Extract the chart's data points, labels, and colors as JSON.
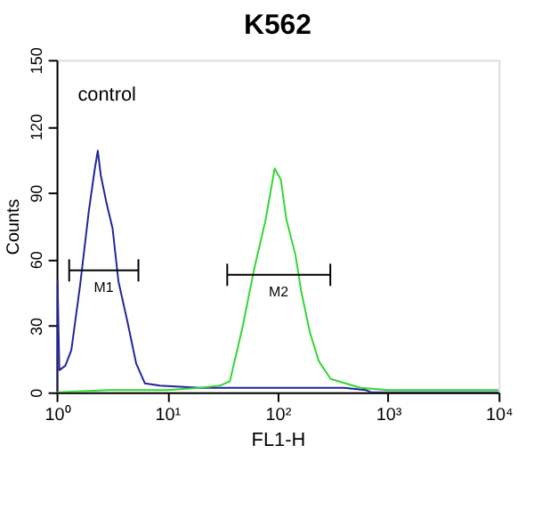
{
  "chart_data": {
    "type": "line",
    "title": "K562",
    "xlabel": "FL1-H",
    "ylabel": "Counts",
    "log": "x",
    "xlim": [
      1,
      10000
    ],
    "xticks": [
      {
        "value": 1,
        "label": "10⁰"
      },
      {
        "value": 10,
        "label": "10¹"
      },
      {
        "value": 100,
        "label": "10²"
      },
      {
        "value": 1000,
        "label": "10³"
      },
      {
        "value": 10000,
        "label": "10⁴"
      }
    ],
    "ylim": [
      0,
      150
    ],
    "yticks": [
      0,
      30,
      60,
      90,
      120,
      150
    ],
    "annotations": [
      "control",
      {
        "text": "M1",
        "x": 2.67,
        "y": 55
      },
      {
        "text": "M2",
        "x": 102,
        "y": 53
      }
    ],
    "series": [
      {
        "color": "#23239a",
        "x": [
          1.0,
          1.02,
          1.06,
          1.2,
          1.36,
          1.63,
          1.96,
          2.22,
          2.36,
          2.51,
          2.84,
          3.21,
          3.63,
          4.37,
          5.25,
          6.3,
          8.6,
          20,
          100,
          400,
          630,
          700,
          10000
        ],
        "values": [
          0,
          50,
          10,
          12,
          19,
          48,
          82,
          101,
          109,
          98,
          85,
          74,
          50,
          32,
          13,
          4,
          3,
          2,
          2,
          2,
          1,
          0,
          0
        ]
      },
      {
        "color": "#33d633",
        "x": [
          1.0,
          3,
          10,
          20,
          30,
          37,
          48,
          61,
          78,
          94,
          107,
          120,
          145,
          163,
          196,
          236,
          302,
          562,
          1000,
          10000
        ],
        "values": [
          0,
          1,
          1,
          2,
          3,
          5,
          29,
          55,
          78,
          101,
          96,
          78,
          62,
          46,
          27,
          14,
          6,
          2,
          1,
          1
        ]
      },
      {
        "type": "line",
        "color": "#000000",
        "x": [
          1.3,
          5.5
        ],
        "values": [
          55,
          55
        ],
        "errors": [
          5,
          5
        ]
      },
      {
        "type": "line",
        "color": "#000000",
        "x": [
          35,
          300
        ],
        "values": [
          53,
          53
        ],
        "errors": [
          5,
          5
        ]
      }
    ]
  }
}
